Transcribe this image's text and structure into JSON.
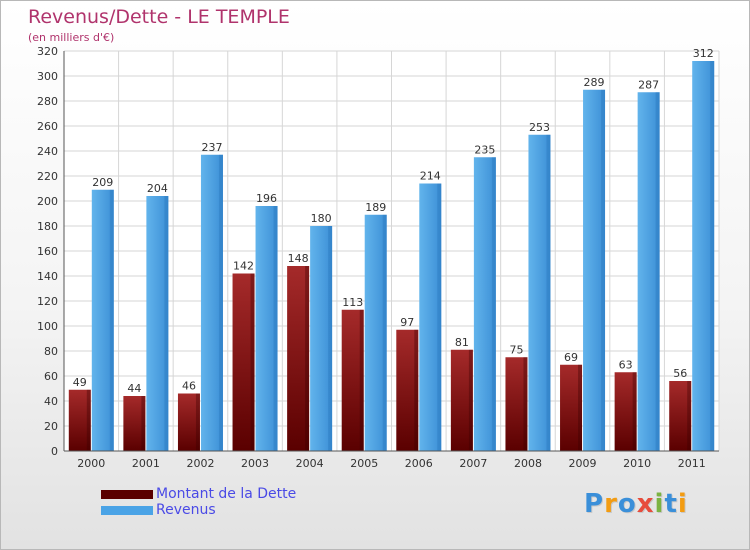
{
  "chart_data": {
    "type": "bar",
    "title": "Revenus/Dette - LE TEMPLE",
    "subtitle": "(en milliers d'€)",
    "categories": [
      "2000",
      "2001",
      "2002",
      "2003",
      "2004",
      "2005",
      "2006",
      "2007",
      "2008",
      "2009",
      "2010",
      "2011"
    ],
    "series": [
      {
        "name": "Montant de la Dette",
        "values": [
          49,
          44,
          46,
          142,
          148,
          113,
          97,
          81,
          75,
          69,
          63,
          56
        ],
        "color": "#8b1a1a",
        "color_dark": "#5a0000"
      },
      {
        "name": "Revenus",
        "values": [
          209,
          204,
          237,
          196,
          180,
          189,
          214,
          235,
          253,
          289,
          287,
          312
        ],
        "color": "#5aaee8",
        "color_dark": "#2f7fc8"
      }
    ],
    "yticks": [
      0,
      20,
      40,
      60,
      80,
      100,
      120,
      140,
      160,
      180,
      200,
      220,
      240,
      260,
      280,
      300,
      320
    ],
    "ylim": [
      0,
      320
    ],
    "grid": true,
    "legend": "bottom-left"
  },
  "brand": {
    "name": "Proxiti",
    "letters": [
      "P",
      "r",
      "o",
      "x",
      "i",
      "t",
      "i"
    ],
    "colors": [
      "#3a8fd9",
      "#f39c12",
      "#3a8fd9",
      "#e74c3c",
      "#7cb342",
      "#3a8fd9",
      "#f39c12"
    ]
  }
}
